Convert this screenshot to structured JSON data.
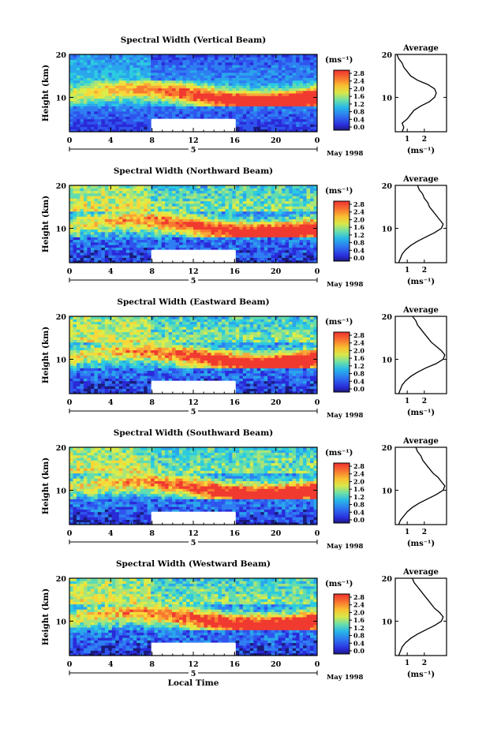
{
  "chart_data": [
    {
      "type": "heatmap",
      "title": "Spectral Width (Vertical Beam)",
      "xlabel": "",
      "ylabel": "Height (km)",
      "x_ticks": [
        "0",
        "4",
        "8",
        "12",
        "16",
        "20",
        "0"
      ],
      "y_ticks": [
        "20",
        "10"
      ],
      "day_marker": "5",
      "date_label": "May 1998",
      "colorbar": {
        "unit": "(ms⁻¹)",
        "ticks": [
          "2.8",
          "2.4",
          "2.0",
          "1.6",
          "1.2",
          "0.8",
          "0.4",
          "0.0"
        ]
      },
      "gap": {
        "x_from": 8,
        "x_to": 16,
        "y_from": 2,
        "y_to": 5
      },
      "profile": {
        "title": "Average",
        "xlabel": "(ms⁻¹)",
        "x_ticks": [
          "1",
          "2"
        ],
        "y_ticks": [
          "20",
          "10"
        ],
        "points": [
          [
            0.7,
            2
          ],
          [
            0.8,
            3
          ],
          [
            0.7,
            4
          ],
          [
            1.0,
            5
          ],
          [
            1.2,
            6
          ],
          [
            1.4,
            7
          ],
          [
            1.8,
            8
          ],
          [
            2.3,
            9
          ],
          [
            2.6,
            10
          ],
          [
            2.7,
            11
          ],
          [
            2.6,
            12
          ],
          [
            2.2,
            13
          ],
          [
            1.6,
            14
          ],
          [
            1.2,
            15
          ],
          [
            1.0,
            16
          ],
          [
            0.8,
            17
          ],
          [
            0.7,
            18
          ],
          [
            0.5,
            19
          ],
          [
            0.4,
            20
          ]
        ]
      }
    },
    {
      "type": "heatmap",
      "title": "Spectral Width (Northward Beam)",
      "xlabel": "",
      "ylabel": "Height (km)",
      "x_ticks": [
        "0",
        "4",
        "8",
        "12",
        "16",
        "20",
        "0"
      ],
      "y_ticks": [
        "20",
        "10"
      ],
      "day_marker": "5",
      "date_label": "May 1998",
      "colorbar": {
        "unit": "(ms⁻¹)",
        "ticks": [
          "2.8",
          "2.4",
          "2.0",
          "1.6",
          "1.2",
          "0.8",
          "0.4",
          "0.0"
        ]
      },
      "gap": {
        "x_from": 8,
        "x_to": 16,
        "y_from": 2,
        "y_to": 5
      },
      "profile": {
        "title": "Average",
        "xlabel": "(ms⁻¹)",
        "x_ticks": [
          "1",
          "2"
        ],
        "y_ticks": [
          "20",
          "10"
        ],
        "points": [
          [
            0.5,
            2
          ],
          [
            0.6,
            3
          ],
          [
            0.7,
            4
          ],
          [
            0.9,
            5
          ],
          [
            1.2,
            6
          ],
          [
            1.6,
            7
          ],
          [
            2.1,
            8
          ],
          [
            2.6,
            9
          ],
          [
            3.0,
            10
          ],
          [
            3.1,
            11
          ],
          [
            2.9,
            12
          ],
          [
            2.7,
            13
          ],
          [
            2.5,
            14
          ],
          [
            2.3,
            15
          ],
          [
            2.2,
            16
          ],
          [
            2.0,
            17
          ],
          [
            1.9,
            18
          ],
          [
            1.7,
            19
          ],
          [
            1.6,
            20
          ]
        ]
      }
    },
    {
      "type": "heatmap",
      "title": "Spectral Width (Eastward Beam)",
      "xlabel": "",
      "ylabel": "Height (km)",
      "x_ticks": [
        "0",
        "4",
        "8",
        "12",
        "16",
        "20",
        "0"
      ],
      "y_ticks": [
        "20",
        "10"
      ],
      "day_marker": "5",
      "date_label": "May 1998",
      "colorbar": {
        "unit": "(ms⁻¹)",
        "ticks": [
          "2.8",
          "2.4",
          "2.0",
          "1.6",
          "1.2",
          "0.8",
          "0.4",
          "0.0"
        ]
      },
      "gap": {
        "x_from": 8,
        "x_to": 16,
        "y_from": 2,
        "y_to": 5
      },
      "profile": {
        "title": "Average",
        "xlabel": "(ms⁻¹)",
        "x_ticks": [
          "1",
          "2"
        ],
        "y_ticks": [
          "20",
          "10"
        ],
        "points": [
          [
            0.5,
            2
          ],
          [
            0.6,
            3
          ],
          [
            0.7,
            4
          ],
          [
            0.9,
            5
          ],
          [
            1.2,
            6
          ],
          [
            1.6,
            7
          ],
          [
            2.1,
            8
          ],
          [
            2.7,
            9
          ],
          [
            3.1,
            10
          ],
          [
            3.2,
            11
          ],
          [
            3.0,
            12
          ],
          [
            2.7,
            13
          ],
          [
            2.4,
            14
          ],
          [
            2.2,
            15
          ],
          [
            2.0,
            16
          ],
          [
            1.8,
            17
          ],
          [
            1.6,
            18
          ],
          [
            1.5,
            19
          ],
          [
            1.3,
            20
          ]
        ]
      }
    },
    {
      "type": "heatmap",
      "title": "Spectral Width (Southward Beam)",
      "xlabel": "",
      "ylabel": "Height (km)",
      "x_ticks": [
        "0",
        "4",
        "8",
        "12",
        "16",
        "20",
        "0"
      ],
      "y_ticks": [
        "20",
        "10"
      ],
      "day_marker": "5",
      "date_label": "May 1998",
      "colorbar": {
        "unit": "(ms⁻¹)",
        "ticks": [
          "2.8",
          "2.4",
          "2.0",
          "1.6",
          "1.2",
          "0.8",
          "0.4",
          "0.0"
        ]
      },
      "gap": {
        "x_from": 8,
        "x_to": 16,
        "y_from": 2,
        "y_to": 5
      },
      "profile": {
        "title": "Average",
        "xlabel": "(ms⁻¹)",
        "x_ticks": [
          "1",
          "2"
        ],
        "y_ticks": [
          "20",
          "10"
        ],
        "points": [
          [
            0.5,
            2
          ],
          [
            0.6,
            3
          ],
          [
            0.8,
            4
          ],
          [
            1.0,
            5
          ],
          [
            1.3,
            6
          ],
          [
            1.7,
            7
          ],
          [
            2.2,
            8
          ],
          [
            2.7,
            9
          ],
          [
            3.1,
            10
          ],
          [
            3.2,
            11
          ],
          [
            3.0,
            12
          ],
          [
            2.8,
            13
          ],
          [
            2.5,
            14
          ],
          [
            2.3,
            15
          ],
          [
            2.1,
            16
          ],
          [
            1.9,
            17
          ],
          [
            1.8,
            18
          ],
          [
            1.6,
            19
          ],
          [
            1.5,
            20
          ]
        ]
      }
    },
    {
      "type": "heatmap",
      "title": "Spectral Width (Westward Beam)",
      "xlabel": "Local Time",
      "ylabel": "Height (km)",
      "x_ticks": [
        "0",
        "4",
        "8",
        "12",
        "16",
        "20",
        "0"
      ],
      "y_ticks": [
        "20",
        "10"
      ],
      "day_marker": "5",
      "date_label": "May 1998",
      "colorbar": {
        "unit": "(ms⁻¹)",
        "ticks": [
          "2.8",
          "2.4",
          "2.0",
          "1.6",
          "1.2",
          "0.8",
          "0.4",
          "0.0"
        ]
      },
      "gap": {
        "x_from": 8,
        "x_to": 16,
        "y_from": 2,
        "y_to": 5
      },
      "profile": {
        "title": "Average",
        "xlabel": "(ms⁻¹)",
        "x_ticks": [
          "1",
          "2"
        ],
        "y_ticks": [
          "20",
          "10"
        ],
        "points": [
          [
            0.5,
            2
          ],
          [
            0.6,
            3
          ],
          [
            0.7,
            4
          ],
          [
            0.9,
            5
          ],
          [
            1.2,
            6
          ],
          [
            1.6,
            7
          ],
          [
            2.1,
            8
          ],
          [
            2.6,
            9
          ],
          [
            3.0,
            10
          ],
          [
            3.1,
            11
          ],
          [
            2.9,
            12
          ],
          [
            2.6,
            13
          ],
          [
            2.4,
            14
          ],
          [
            2.2,
            15
          ],
          [
            2.0,
            16
          ],
          [
            1.8,
            17
          ],
          [
            1.6,
            18
          ],
          [
            1.4,
            19
          ],
          [
            1.3,
            20
          ]
        ]
      }
    }
  ]
}
